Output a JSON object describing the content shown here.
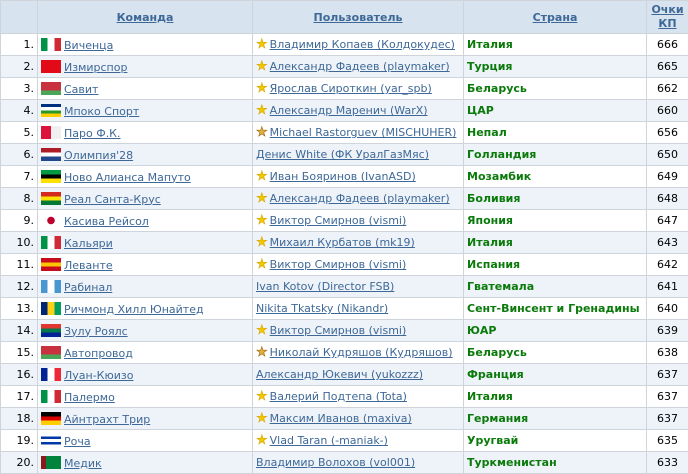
{
  "headers": {
    "team": "Команда",
    "user": "Пользователь",
    "country": "Страна",
    "points": "Очки КП"
  },
  "rows": [
    {
      "rank": "1.",
      "team": "Виченца",
      "flag": [
        "#009246",
        "#fff",
        "#ce2b37"
      ],
      "flagDir": "v",
      "star": "gold",
      "user": "Владимир Копаев (Колдокудес)",
      "country": "Италия",
      "points": "666"
    },
    {
      "rank": "2.",
      "team": "Измирспор",
      "flag": [
        "#e30a17"
      ],
      "flagDir": "h",
      "star": "gold",
      "user": "Александр Фадеев (playmaker)",
      "country": "Турция",
      "points": "665"
    },
    {
      "rank": "3.",
      "team": "Савит",
      "flag": [
        "#c8313e",
        "#c8313e",
        "#4aa657"
      ],
      "flagDir": "h",
      "star": "gold",
      "user": "Ярослав Сироткин (yar_spb)",
      "country": "Беларусь",
      "points": "662"
    },
    {
      "rank": "4.",
      "team": "Мпоко Спорт",
      "flag": [
        "#003082",
        "#fff",
        "#289728",
        "#ffce00"
      ],
      "flagDir": "h",
      "star": "gold",
      "user": "Александр Маренич (WarX)",
      "country": "ЦАР",
      "points": "660"
    },
    {
      "rank": "5.",
      "team": "Паро Ф.К.",
      "flag": [
        "#dc143c",
        "#f0f0f0"
      ],
      "flagDir": "v",
      "star": "bronze",
      "user": "Michael Rastorguev (MISCHUHER)",
      "country": "Непал",
      "points": "656"
    },
    {
      "rank": "6.",
      "team": "Олимпия'28",
      "flag": [
        "#ae1c28",
        "#fff",
        "#21468b"
      ],
      "flagDir": "h",
      "star": "none",
      "user": "Денис White (ФК УралГазМяс)",
      "country": "Голландия",
      "points": "650"
    },
    {
      "rank": "7.",
      "team": "Ново Алианса Мапуто",
      "flag": [
        "#009a44",
        "#000",
        "#fce100"
      ],
      "flagDir": "h",
      "star": "gold",
      "user": "Иван Бояринов (IvanASD)",
      "country": "Мозамбик",
      "points": "649"
    },
    {
      "rank": "8.",
      "team": "Реал Санта-Крус",
      "flag": [
        "#d52b1e",
        "#f9e300",
        "#007934"
      ],
      "flagDir": "h",
      "star": "gold",
      "user": "Александр Фадеев (playmaker)",
      "country": "Боливия",
      "points": "648"
    },
    {
      "rank": "9.",
      "team": "Касива Рейсол",
      "flag": [
        "#fff"
      ],
      "flagDir": "jp",
      "star": "gold",
      "user": "Виктор Смирнов (vismi)",
      "country": "Япония",
      "points": "647"
    },
    {
      "rank": "10.",
      "team": "Кальяри",
      "flag": [
        "#009246",
        "#fff",
        "#ce2b37"
      ],
      "flagDir": "v",
      "star": "gold",
      "user": "Михаил Курбатов (mk19)",
      "country": "Италия",
      "points": "643"
    },
    {
      "rank": "11.",
      "team": "Леванте",
      "flag": [
        "#c60b1e",
        "#ffc400",
        "#c60b1e"
      ],
      "flagDir": "h",
      "star": "gold",
      "user": "Виктор Смирнов (vismi)",
      "country": "Испания",
      "points": "642"
    },
    {
      "rank": "12.",
      "team": "Рабинал",
      "flag": [
        "#4997d0",
        "#fff",
        "#4997d0"
      ],
      "flagDir": "v",
      "star": "none",
      "user": "Ivan Kotov (Director FSB)",
      "country": "Гватемала",
      "points": "641"
    },
    {
      "rank": "13.",
      "team": "Ричмонд Хилл Юнайтед",
      "flag": [
        "#002674",
        "#fcd116",
        "#009e60"
      ],
      "flagDir": "v",
      "star": "none",
      "user": "Nikita Tkatsky (Nikandr)",
      "country": "Сент-Винсент и Гренадины",
      "points": "640"
    },
    {
      "rank": "14.",
      "team": "Зулу Роялс",
      "flag": [
        "#de3831",
        "#007a4d",
        "#002395"
      ],
      "flagDir": "h",
      "star": "gold",
      "user": "Виктор Смирнов (vismi)",
      "country": "ЮАР",
      "points": "639"
    },
    {
      "rank": "15.",
      "team": "Автопровод",
      "flag": [
        "#c8313e",
        "#c8313e",
        "#4aa657"
      ],
      "flagDir": "h",
      "star": "bronze",
      "user": "Николай Кудряшов (Кудряшов)",
      "country": "Беларусь",
      "points": "638"
    },
    {
      "rank": "16.",
      "team": "Луан-Кюизо",
      "flag": [
        "#002395",
        "#fff",
        "#ed2939"
      ],
      "flagDir": "v",
      "star": "none",
      "user": "Александр Юкевич (yukozzz)",
      "country": "Франция",
      "points": "637"
    },
    {
      "rank": "17.",
      "team": "Палермо",
      "flag": [
        "#009246",
        "#fff",
        "#ce2b37"
      ],
      "flagDir": "v",
      "star": "gold",
      "user": "Валерий Подтепа (Tota)",
      "country": "Италия",
      "points": "637"
    },
    {
      "rank": "18.",
      "team": "Айнтрахт Трир",
      "flag": [
        "#000",
        "#dd0000",
        "#ffce00"
      ],
      "flagDir": "h",
      "star": "gold",
      "user": "Максим Иванов (maxiva)",
      "country": "Германия",
      "points": "637"
    },
    {
      "rank": "19.",
      "team": "Роча",
      "flag": [
        "#fff",
        "#0038a8",
        "#fff",
        "#0038a8",
        "#fff"
      ],
      "flagDir": "h",
      "star": "gold",
      "user": "Vlad Taran (-maniak-)",
      "country": "Уругвай",
      "points": "635"
    },
    {
      "rank": "20.",
      "team": "Медик",
      "flag": [
        "#8b1a1a",
        "#00843d",
        "#00843d",
        "#00843d"
      ],
      "flagDir": "v",
      "star": "none",
      "user": "Владимир Волохов (vol001)",
      "country": "Туркменистан",
      "points": "633"
    }
  ]
}
